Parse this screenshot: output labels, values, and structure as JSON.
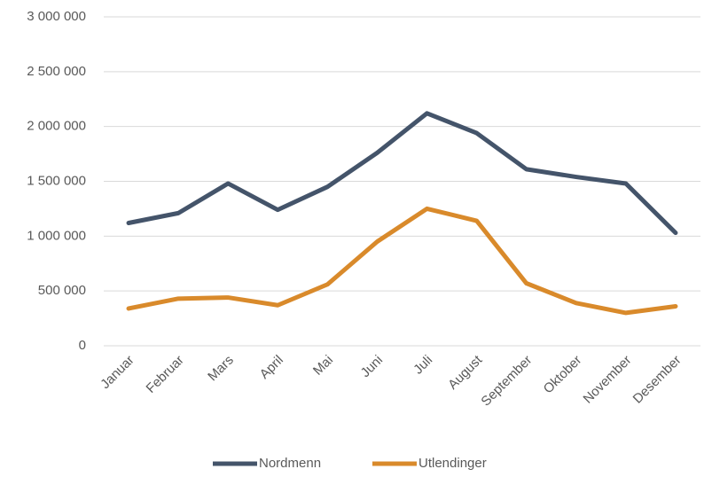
{
  "chart_data": {
    "type": "line",
    "categories": [
      "Januar",
      "Februar",
      "Mars",
      "April",
      "Mai",
      "Juni",
      "Juli",
      "August",
      "September",
      "Oktober",
      "November",
      "Desember"
    ],
    "series": [
      {
        "name": "Nordmenn",
        "color": "#44546a",
        "values": [
          1120000,
          1210000,
          1480000,
          1240000,
          1450000,
          1760000,
          2120000,
          1940000,
          1610000,
          1540000,
          1480000,
          1030000
        ]
      },
      {
        "name": "Utlendinger",
        "color": "#d98a2b",
        "values": [
          340000,
          430000,
          440000,
          370000,
          560000,
          950000,
          1250000,
          1140000,
          570000,
          390000,
          300000,
          360000
        ]
      }
    ],
    "ylim": [
      0,
      3000000
    ],
    "yticks": [
      0,
      {
        "value": 500000,
        "label": "500 000"
      },
      {
        "value": 1000000,
        "label": "1 000 000"
      },
      {
        "value": 1500000,
        "label": "1 500 000"
      },
      {
        "value": 2000000,
        "label": "2 000 000"
      },
      {
        "value": 2500000,
        "label": "2 500 000"
      },
      {
        "value": 3000000,
        "label": "3 000 000"
      }
    ],
    "grid": true,
    "legend": "bottom"
  }
}
